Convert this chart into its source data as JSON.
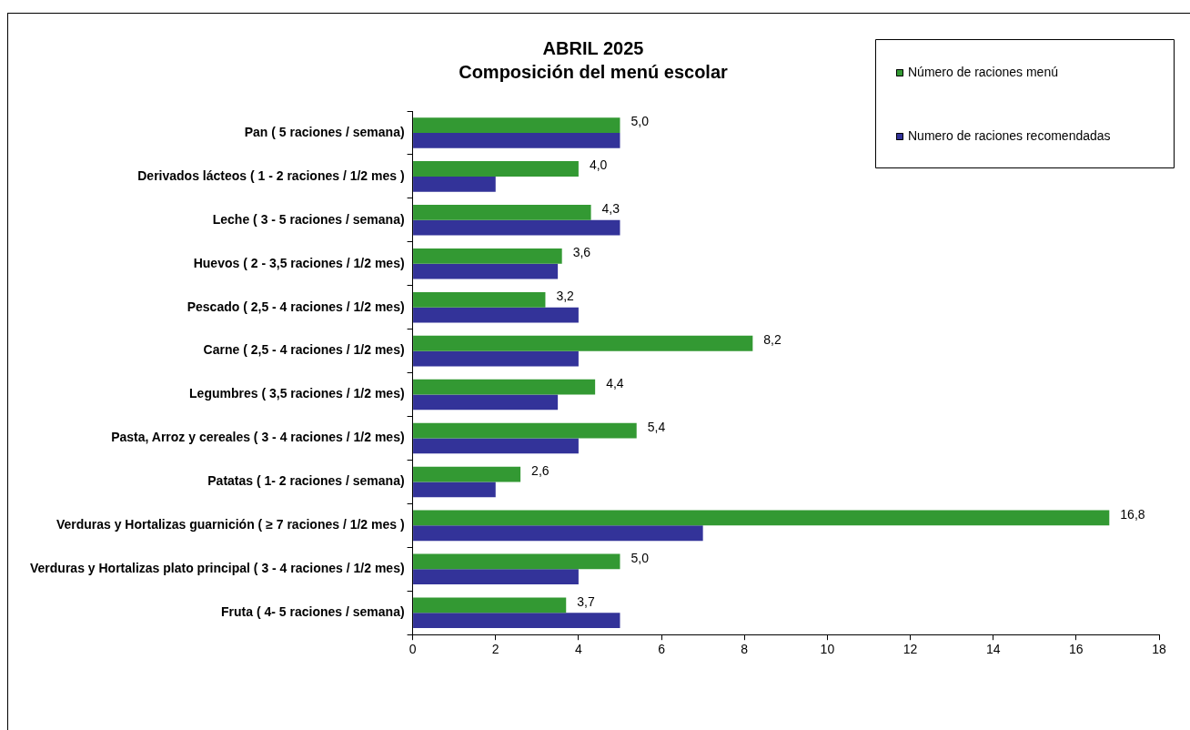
{
  "chart_data": {
    "type": "bar",
    "orientation": "horizontal",
    "title": "ABRIL 2025",
    "subtitle": "Composición del menú escolar",
    "categories": [
      "Pan ( 5 raciones / semana)",
      "Derivados lácteos ( 1 - 2 raciones / 1/2 mes )",
      "Leche ( 3 - 5 raciones / semana)",
      "Huevos ( 2 - 3,5 raciones / 1/2 mes)",
      "Pescado ( 2,5 - 4 raciones / 1/2 mes)",
      "Carne ( 2,5 - 4 raciones / 1/2 mes)",
      "Legumbres ( 3,5 raciones / 1/2 mes)",
      "Pasta, Arroz y cereales ( 3 - 4 raciones / 1/2 mes)",
      "Patatas ( 1- 2 raciones / semana)",
      "Verduras y Hortalizas guarnición ( ≥ 7 raciones / 1/2 mes )",
      "Verduras y Hortalizas plato principal ( 3 - 4 raciones / 1/2 mes)",
      "Fruta ( 4- 5 raciones / semana)"
    ],
    "series": [
      {
        "name": "Número de raciones menú",
        "color": "#339933",
        "values": [
          5.0,
          4.0,
          4.3,
          3.6,
          3.2,
          8.2,
          4.4,
          5.4,
          2.6,
          16.8,
          5.0,
          3.7
        ],
        "value_labels": [
          "5,0",
          "4,0",
          "4,3",
          "3,6",
          "3,2",
          "8,2",
          "4,4",
          "5,4",
          "2,6",
          "16,8",
          "5,0",
          "3,7"
        ]
      },
      {
        "name": "Numero de raciones recomendadas",
        "color": "#333399",
        "values": [
          5,
          2,
          5,
          3.5,
          4,
          4,
          3.5,
          4,
          2,
          7,
          4,
          5
        ]
      }
    ],
    "xlim": [
      0,
      18
    ],
    "xticks": [
      0,
      2,
      4,
      6,
      8,
      10,
      12,
      14,
      16,
      18
    ],
    "grid": false,
    "legend": "top right"
  }
}
